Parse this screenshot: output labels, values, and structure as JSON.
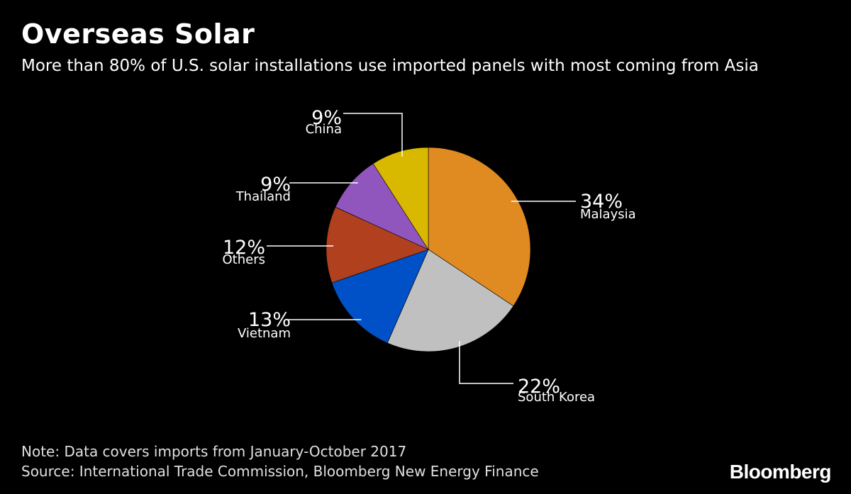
{
  "header": {
    "title": "Overseas Solar",
    "subtitle": "More than 80% of U.S. solar installations use imported panels with most coming from Asia"
  },
  "chart_data": {
    "type": "pie",
    "start": "12 o'clock, clockwise",
    "slices": [
      {
        "label": "Malaysia",
        "value": 34,
        "value_label": "34%",
        "color": "#E08A22"
      },
      {
        "label": "South Korea",
        "value": 22,
        "value_label": "22%",
        "color": "#C0C0C0"
      },
      {
        "label": "Vietnam",
        "value": 13,
        "value_label": "13%",
        "color": "#0050C8"
      },
      {
        "label": "Others",
        "value": 12,
        "value_label": "12%",
        "color": "#B0401E"
      },
      {
        "label": "Thailand",
        "value": 9,
        "value_label": "9%",
        "color": "#9155BE"
      },
      {
        "label": "China",
        "value": 9,
        "value_label": "9%",
        "color": "#D9B800"
      }
    ]
  },
  "footer": {
    "note": "Note: Data covers imports from January-October 2017",
    "source": "Source: International Trade Commission, Bloomberg New Energy Finance",
    "brand": "Bloomberg"
  }
}
